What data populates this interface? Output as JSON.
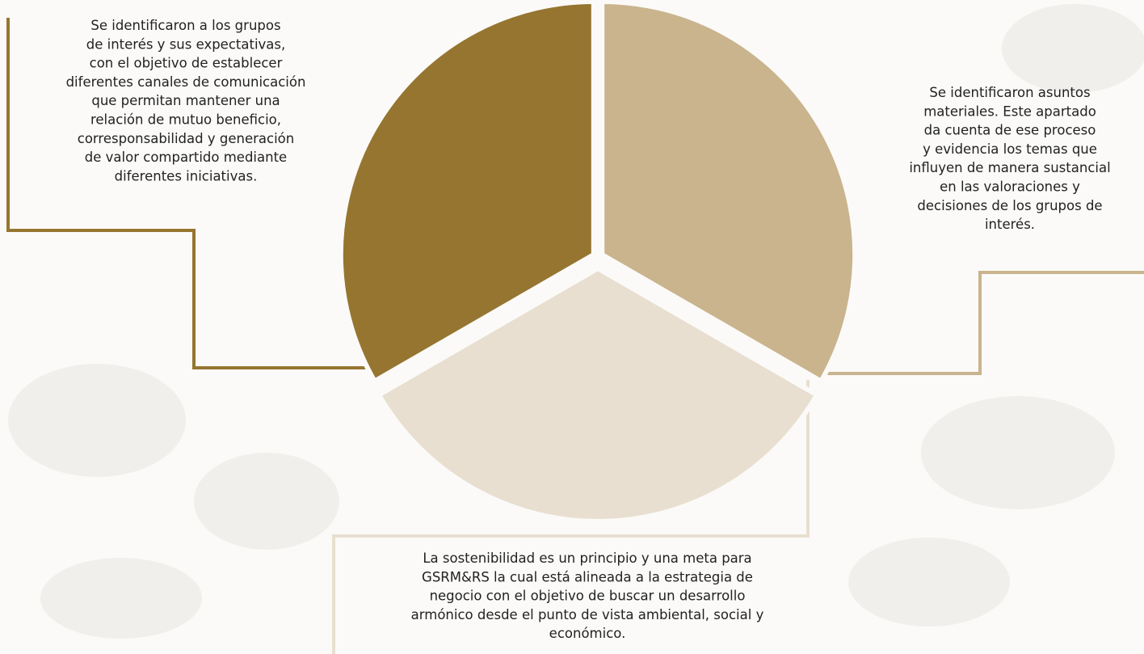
{
  "blocks": [
    {
      "lines": [
        "Se identificaron a los grupos",
        "de interés y sus expectativas,",
        "con el objetivo de establecer",
        "diferentes canales de comunicación",
        "que permitan mantener una",
        "relación de mutuo beneficio,",
        "corresponsabilidad y  generación",
        "de valor compartido mediante",
        "diferentes iniciativas."
      ]
    },
    {
      "lines": [
        "Se identificaron asuntos",
        "materiales. Este apartado",
        "da cuenta de ese proceso",
        "y evidencia los temas que",
        "influyen de manera sustancial",
        "en las valoraciones y",
        "decisiones de los grupos de",
        "interés."
      ]
    },
    {
      "lines": [
        "La sostenibilidad es un principio y una meta para",
        "GSRM&RS la cual está alineada a la estrategia de",
        "negocio con el objetivo de buscar un desarrollo",
        "armónico desde el punto de vista ambiental, social y",
        "económico."
      ]
    }
  ]
}
